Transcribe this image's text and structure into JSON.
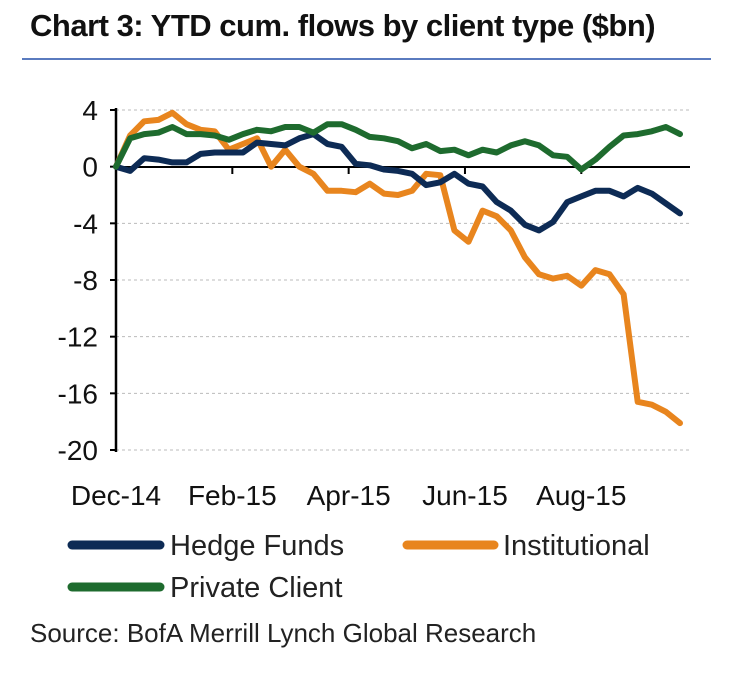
{
  "colors": {
    "hedge": "#0d2b55",
    "institutional": "#e8851e",
    "private": "#1e6b2e",
    "axis": "#000000",
    "grid": "#bbbbbb",
    "rule": "#5a7bbf"
  },
  "chart_data": {
    "type": "line",
    "title": "Chart 3: YTD cum. flows by client type ($bn)",
    "xlabel": "",
    "ylabel": "",
    "ylim": [
      -20,
      4
    ],
    "yticks": [
      4,
      0,
      -4,
      -8,
      -12,
      -16,
      -20
    ],
    "ytick_labels": [
      "4",
      "0",
      "-4",
      "-8",
      "-12",
      "-16",
      "-20"
    ],
    "xlim": [
      0,
      40
    ],
    "xticks": [
      0,
      8.25,
      16.5,
      24.75,
      33
    ],
    "xtick_labels": [
      "Dec-14",
      "Feb-15",
      "Apr-15",
      "Jun-15",
      "Aug-15"
    ],
    "grid": true,
    "legend_position": "bottom",
    "series": [
      {
        "name": "Hedge Funds",
        "color": "#0d2b55",
        "x": [
          0,
          1,
          2,
          3,
          4,
          5,
          6,
          7,
          8,
          9,
          10,
          11,
          12,
          13,
          14,
          15,
          16,
          17,
          18,
          19,
          20,
          21,
          22,
          23,
          24,
          25,
          26,
          27,
          28,
          29,
          30,
          31,
          32,
          33,
          34,
          35,
          36,
          37,
          38,
          39,
          40
        ],
        "values": [
          0,
          -0.3,
          0.6,
          0.5,
          0.3,
          0.3,
          0.9,
          1.0,
          1.0,
          1.0,
          1.7,
          1.6,
          1.5,
          2.0,
          2.3,
          1.6,
          1.4,
          0.2,
          0.1,
          -0.2,
          -0.3,
          -0.5,
          -1.3,
          -1.1,
          -0.5,
          -1.2,
          -1.4,
          -2.5,
          -3.1,
          -4.1,
          -4.5,
          -3.9,
          -2.5,
          -2.1,
          -1.7,
          -1.7,
          -2.1,
          -1.5,
          -1.9,
          -2.6,
          -3.3
        ]
      },
      {
        "name": "Institutional",
        "color": "#e8851e",
        "x": [
          0,
          1,
          2,
          3,
          4,
          5,
          6,
          7,
          8,
          9,
          10,
          11,
          12,
          13,
          14,
          15,
          16,
          17,
          18,
          19,
          20,
          21,
          22,
          23,
          24,
          25,
          26,
          27,
          28,
          29,
          30,
          31,
          32,
          33,
          34,
          35,
          36,
          37,
          38,
          39,
          40
        ],
        "values": [
          0,
          2.2,
          3.2,
          3.3,
          3.8,
          3.0,
          2.6,
          2.5,
          1.2,
          1.6,
          2.0,
          0.0,
          1.2,
          0.0,
          -0.5,
          -1.7,
          -1.7,
          -1.8,
          -1.2,
          -1.9,
          -2.0,
          -1.7,
          -0.5,
          -0.6,
          -4.5,
          -5.3,
          -3.1,
          -3.5,
          -4.5,
          -6.4,
          -7.6,
          -7.9,
          -7.7,
          -8.4,
          -7.3,
          -7.6,
          -9.0,
          -16.6,
          -16.8,
          -17.3,
          -18.1
        ]
      },
      {
        "name": "Private Client",
        "color": "#1e6b2e",
        "x": [
          0,
          1,
          2,
          3,
          4,
          5,
          6,
          7,
          8,
          9,
          10,
          11,
          12,
          13,
          14,
          15,
          16,
          17,
          18,
          19,
          20,
          21,
          22,
          23,
          24,
          25,
          26,
          27,
          28,
          29,
          30,
          31,
          32,
          33,
          34,
          35,
          36,
          37,
          38,
          39,
          40
        ],
        "values": [
          0,
          2.0,
          2.3,
          2.4,
          2.8,
          2.3,
          2.3,
          2.2,
          1.9,
          2.3,
          2.6,
          2.5,
          2.8,
          2.8,
          2.4,
          3.0,
          3.0,
          2.6,
          2.1,
          2.0,
          1.8,
          1.3,
          1.6,
          1.1,
          1.2,
          0.8,
          1.2,
          1.0,
          1.5,
          1.8,
          1.5,
          0.8,
          0.7,
          -0.2,
          0.5,
          1.4,
          2.2,
          2.3,
          2.5,
          2.8,
          2.3
        ]
      }
    ]
  },
  "source": "Source: BofA Merrill Lynch Global Research"
}
